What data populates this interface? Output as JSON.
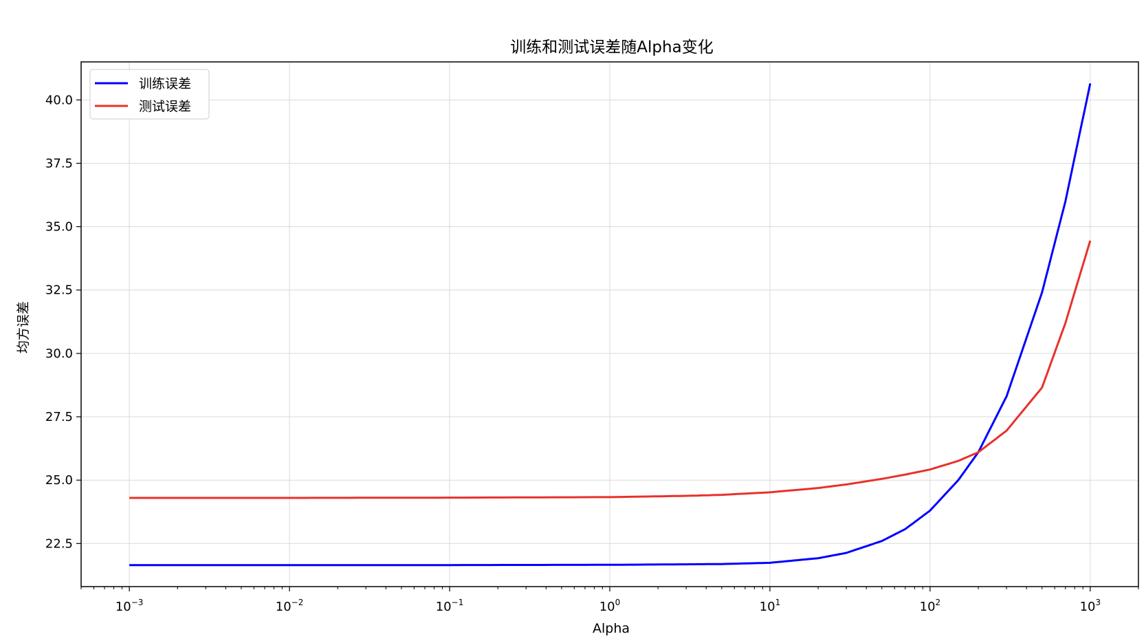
{
  "chart_data": {
    "type": "line",
    "title": "训练和测试误差随Alpha变化",
    "xlabel": "Alpha",
    "ylabel": "均方误差",
    "xscale": "log",
    "xlim": [
      0.0005,
      2000
    ],
    "ylim": [
      20.8,
      41.5
    ],
    "grid": true,
    "legend_position": "top-left",
    "x_ticks": [
      {
        "value": 0.001,
        "base": "10",
        "exp": "−3"
      },
      {
        "value": 0.01,
        "base": "10",
        "exp": "−2"
      },
      {
        "value": 0.1,
        "base": "10",
        "exp": "−1"
      },
      {
        "value": 1,
        "base": "10",
        "exp": "0"
      },
      {
        "value": 10,
        "base": "10",
        "exp": "1"
      },
      {
        "value": 100,
        "base": "10",
        "exp": "2"
      },
      {
        "value": 1000,
        "base": "10",
        "exp": "3"
      }
    ],
    "y_ticks": [
      {
        "value": 22.5,
        "label": "22.5"
      },
      {
        "value": 25.0,
        "label": "25.0"
      },
      {
        "value": 27.5,
        "label": "27.5"
      },
      {
        "value": 30.0,
        "label": "30.0"
      },
      {
        "value": 32.5,
        "label": "32.5"
      },
      {
        "value": 35.0,
        "label": "35.0"
      },
      {
        "value": 37.5,
        "label": "37.5"
      },
      {
        "value": 40.0,
        "label": "40.0"
      }
    ],
    "series": [
      {
        "name": "训练误差",
        "color": "#0000ff",
        "x": [
          0.001,
          0.01,
          0.1,
          1,
          3,
          5,
          10,
          20,
          30,
          50,
          70,
          100,
          150,
          200,
          300,
          500,
          700,
          1000
        ],
        "y": [
          21.65,
          21.65,
          21.65,
          21.66,
          21.68,
          21.69,
          21.74,
          21.92,
          22.13,
          22.6,
          23.07,
          23.8,
          25.0,
          26.1,
          28.3,
          32.4,
          36.0,
          40.65
        ]
      },
      {
        "name": "测试误差",
        "color": "#e8312a",
        "x": [
          0.001,
          0.01,
          0.1,
          1,
          3,
          5,
          10,
          20,
          30,
          50,
          70,
          100,
          150,
          200,
          300,
          500,
          700,
          1000
        ],
        "y": [
          24.3,
          24.3,
          24.31,
          24.33,
          24.38,
          24.42,
          24.52,
          24.69,
          24.83,
          25.05,
          25.22,
          25.42,
          25.76,
          26.1,
          26.95,
          28.65,
          31.2,
          34.45
        ]
      }
    ]
  }
}
